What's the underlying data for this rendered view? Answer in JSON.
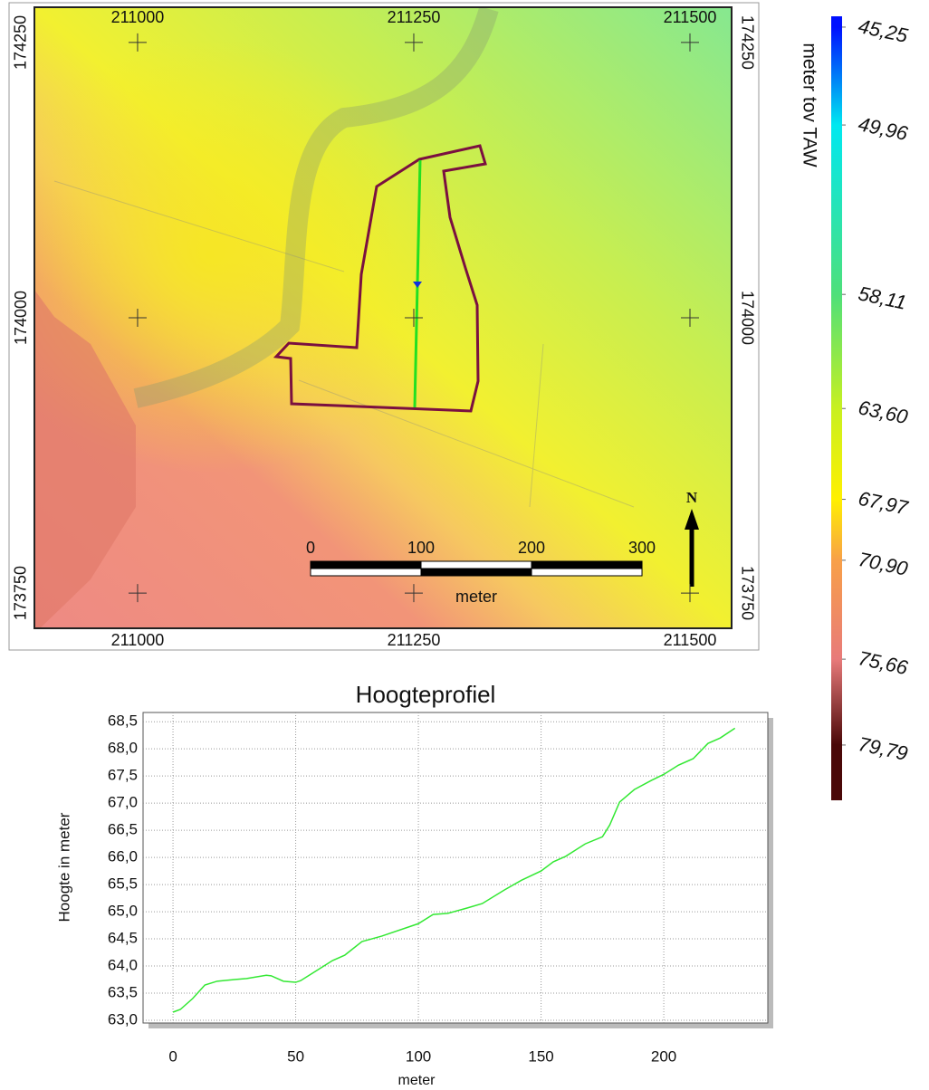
{
  "map": {
    "xlim": [
      210906.6,
      211537.7
    ],
    "ylim": [
      173718,
      174282
    ],
    "xticks": [
      211000,
      211250,
      211500
    ],
    "yticks": [
      173750,
      174000,
      174250
    ],
    "scalebar": {
      "ticks": [
        0,
        100,
        200,
        300
      ],
      "unit": "meter"
    },
    "north": "N"
  },
  "colorbar": {
    "title": "meter tov TAW",
    "lim": [
      44.73,
      82.45
    ],
    "ticks": [
      {
        "value": 45.25,
        "label": "45,25"
      },
      {
        "value": 49.96,
        "label": "49,96"
      },
      {
        "value": 58.11,
        "label": "58,11"
      },
      {
        "value": 63.6,
        "label": "63,60"
      },
      {
        "value": 67.97,
        "label": "67,97"
      },
      {
        "value": 70.9,
        "label": "70,90"
      },
      {
        "value": 75.66,
        "label": "75,66"
      },
      {
        "value": 79.79,
        "label": "79,79"
      }
    ],
    "colors": [
      "#0010ff",
      "#00e8f0",
      "#4ee07a",
      "#c8f020",
      "#fff000",
      "#f8a048",
      "#e87a7a",
      "#4a0808"
    ]
  },
  "chart_data": {
    "type": "line",
    "title": "Hoogteprofiel",
    "xlabel": "meter",
    "ylabel": "Hoogte in meter",
    "x": [
      0,
      3,
      8,
      13,
      18,
      25,
      30,
      38,
      40,
      45,
      50,
      52,
      58,
      65,
      70,
      77,
      85,
      100,
      106,
      112,
      120,
      126,
      135,
      142,
      150,
      155,
      160,
      168,
      175,
      178,
      182,
      188,
      195,
      200,
      206,
      212,
      218,
      223,
      229
    ],
    "series": [
      {
        "color": "#33e833",
        "values": [
          63.15,
          63.2,
          63.4,
          63.65,
          63.72,
          63.75,
          63.77,
          63.83,
          63.82,
          63.72,
          63.7,
          63.73,
          63.9,
          64.1,
          64.2,
          64.45,
          64.55,
          64.78,
          64.95,
          64.97,
          65.07,
          65.15,
          65.4,
          65.58,
          65.75,
          65.92,
          66.02,
          66.25,
          66.38,
          66.6,
          67.02,
          67.25,
          67.42,
          67.53,
          67.7,
          67.82,
          68.1,
          68.2,
          68.38
        ]
      }
    ],
    "xlim": [
      -12.2,
      242.4
    ],
    "ylim": [
      62.95,
      68.67
    ],
    "xticks": [
      0,
      50,
      100,
      150,
      200
    ],
    "yticks": [
      {
        "value": 63.0,
        "label": "63,0"
      },
      {
        "value": 63.5,
        "label": "63,5"
      },
      {
        "value": 64.0,
        "label": "64,0"
      },
      {
        "value": 64.5,
        "label": "64,5"
      },
      {
        "value": 65.0,
        "label": "65,0"
      },
      {
        "value": 65.5,
        "label": "65,5"
      },
      {
        "value": 66.0,
        "label": "66,0"
      },
      {
        "value": 66.5,
        "label": "66,5"
      },
      {
        "value": 67.0,
        "label": "67,0"
      },
      {
        "value": 67.5,
        "label": "67,5"
      },
      {
        "value": 68.0,
        "label": "68,0"
      },
      {
        "value": 68.5,
        "label": "68,5"
      }
    ],
    "grid": true
  }
}
